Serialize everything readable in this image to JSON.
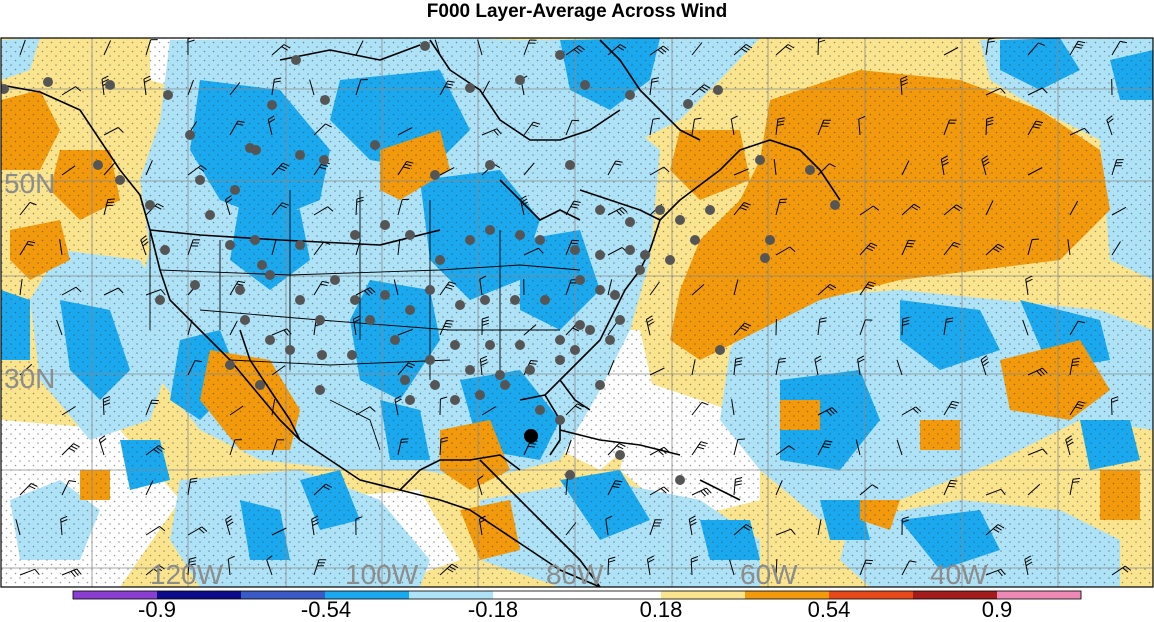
{
  "title": "F000 Layer-Average Across Wind",
  "lat_labels": [
    "50N",
    "30N"
  ],
  "lon_labels": [
    "120W",
    "100W",
    "80W",
    "60W",
    "40W"
  ],
  "colorbar": {
    "colors": [
      "#8b3fd2",
      "#0c0c8a",
      "#3a5bc7",
      "#1aa9ef",
      "#aee2f7",
      "#ffffff",
      "#ffffff",
      "#fae58e",
      "#f29a0c",
      "#e8491a",
      "#a21c1c",
      "#ee88b5"
    ],
    "labels": [
      "-0.9",
      "-0.54",
      "-0.18",
      "0.18",
      "0.54",
      "0.9"
    ]
  },
  "legend_colors": {
    "orange": "#f29a0c",
    "yellow": "#fae58e",
    "blue": "#1aa9ef",
    "lightblue": "#aee2f7",
    "station": "#555555"
  }
}
